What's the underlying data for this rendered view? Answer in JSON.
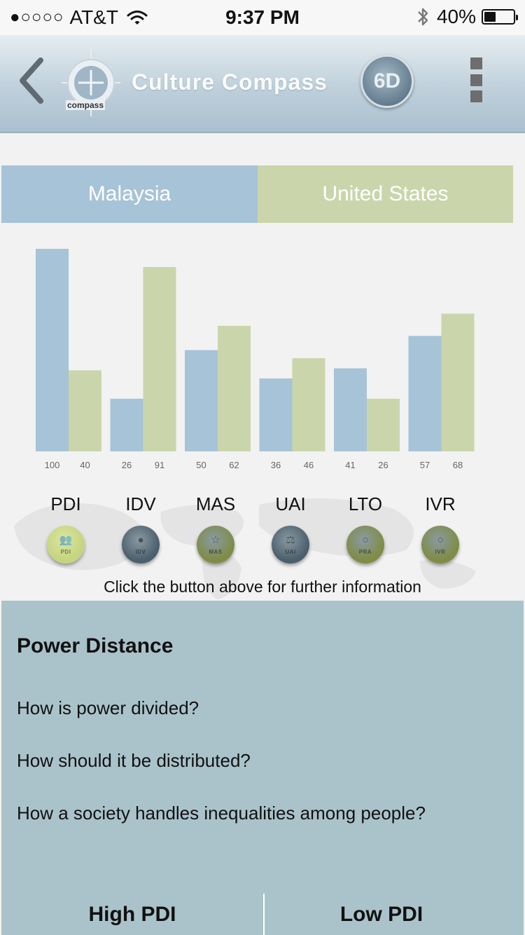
{
  "status_bar": {
    "signal_dots": "●○○○○",
    "carrier": "AT&T",
    "time": "9:37 PM",
    "battery_pct": "40%",
    "battery_level": 0.4
  },
  "header": {
    "title": "Culture Compass",
    "logo_text": "compass",
    "six_d_label": "6D",
    "icons": [
      "chevron-left-icon",
      "compass-logo",
      "wifi-icon",
      "bluetooth-icon",
      "battery-icon",
      "more-vertical-icon"
    ]
  },
  "countries": {
    "left": "Malaysia",
    "right": "United States"
  },
  "colors": {
    "country_a": "#a7c3d8",
    "country_b": "#cbd5ab",
    "panel": "#aac3cb"
  },
  "chart_data": {
    "type": "bar",
    "categories": [
      "PDI",
      "IDV",
      "MAS",
      "UAI",
      "LTO",
      "IVR"
    ],
    "series": [
      {
        "name": "Malaysia",
        "values": [
          100,
          26,
          50,
          36,
          41,
          57
        ]
      },
      {
        "name": "United States",
        "values": [
          40,
          91,
          62,
          46,
          26,
          68
        ]
      }
    ],
    "ylim": [
      0,
      100
    ],
    "grid": false,
    "legend": "top"
  },
  "dimensions": [
    {
      "label": "PDI",
      "caption": "PDI",
      "icon": "people-icon",
      "color": "#c5d47e",
      "active": true
    },
    {
      "label": "IDV",
      "caption": "IDV",
      "icon": "person-icon",
      "color": "#4b5f6c",
      "active": false
    },
    {
      "label": "MAS",
      "caption": "MAS",
      "icon": "star-icon",
      "color": "#7f8c45",
      "active": false
    },
    {
      "label": "UAI",
      "caption": "UAI",
      "icon": "scale-icon",
      "color": "#4b5f6c",
      "active": false
    },
    {
      "label": "LTO",
      "caption": "PRA",
      "icon": "circle-icon",
      "color": "#7f8c45",
      "active": false
    },
    {
      "label": "IVR",
      "caption": "IVR",
      "icon": "circle-icon",
      "color": "#7f8c45",
      "active": false
    }
  ],
  "hint": "Click the button above for further information",
  "info": {
    "title": "Power Distance",
    "lines": [
      "How is power divided?",
      "How should it be distributed?",
      "How a society handles inequalities among people?"
    ],
    "high_button": "High PDI",
    "low_button": "Low PDI"
  }
}
